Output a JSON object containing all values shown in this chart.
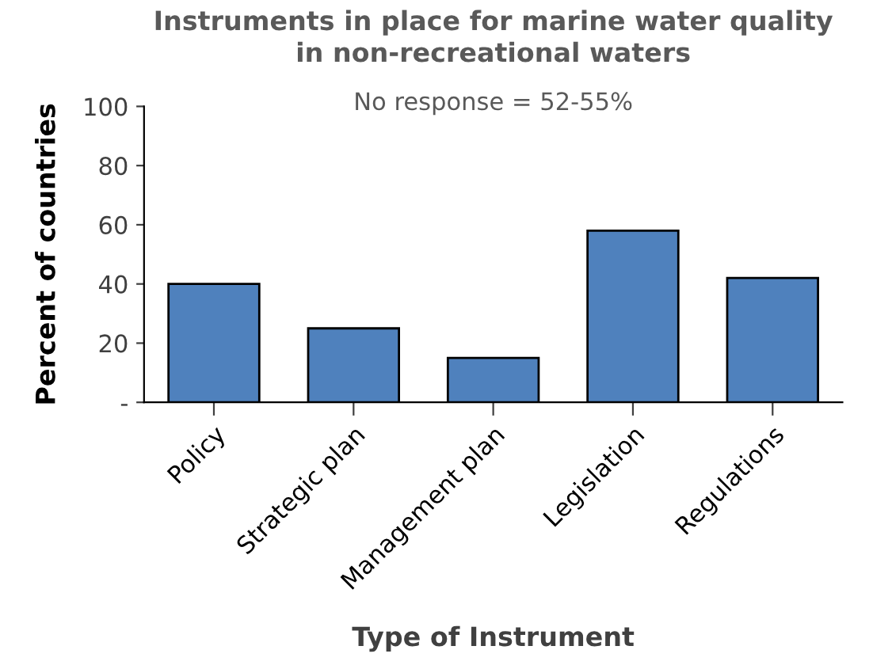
{
  "chart_data": {
    "type": "bar",
    "title": "Instruments in place for marine water quality\nin non-recreational waters",
    "subtitle": "No response = 52-55%",
    "xlabel": "Type of Instrument",
    "ylabel": "Percent of countries",
    "categories": [
      "Policy",
      "Strategic plan",
      "Management plan",
      "Legislation",
      "Regulations"
    ],
    "values": [
      40,
      25,
      15,
      58,
      42
    ],
    "color": "#4f81bd",
    "ylim": [
      0,
      100
    ],
    "yticks": [
      {
        "value": 0,
        "label": "-"
      },
      20,
      40,
      60,
      80,
      100
    ],
    "grid": false
  }
}
